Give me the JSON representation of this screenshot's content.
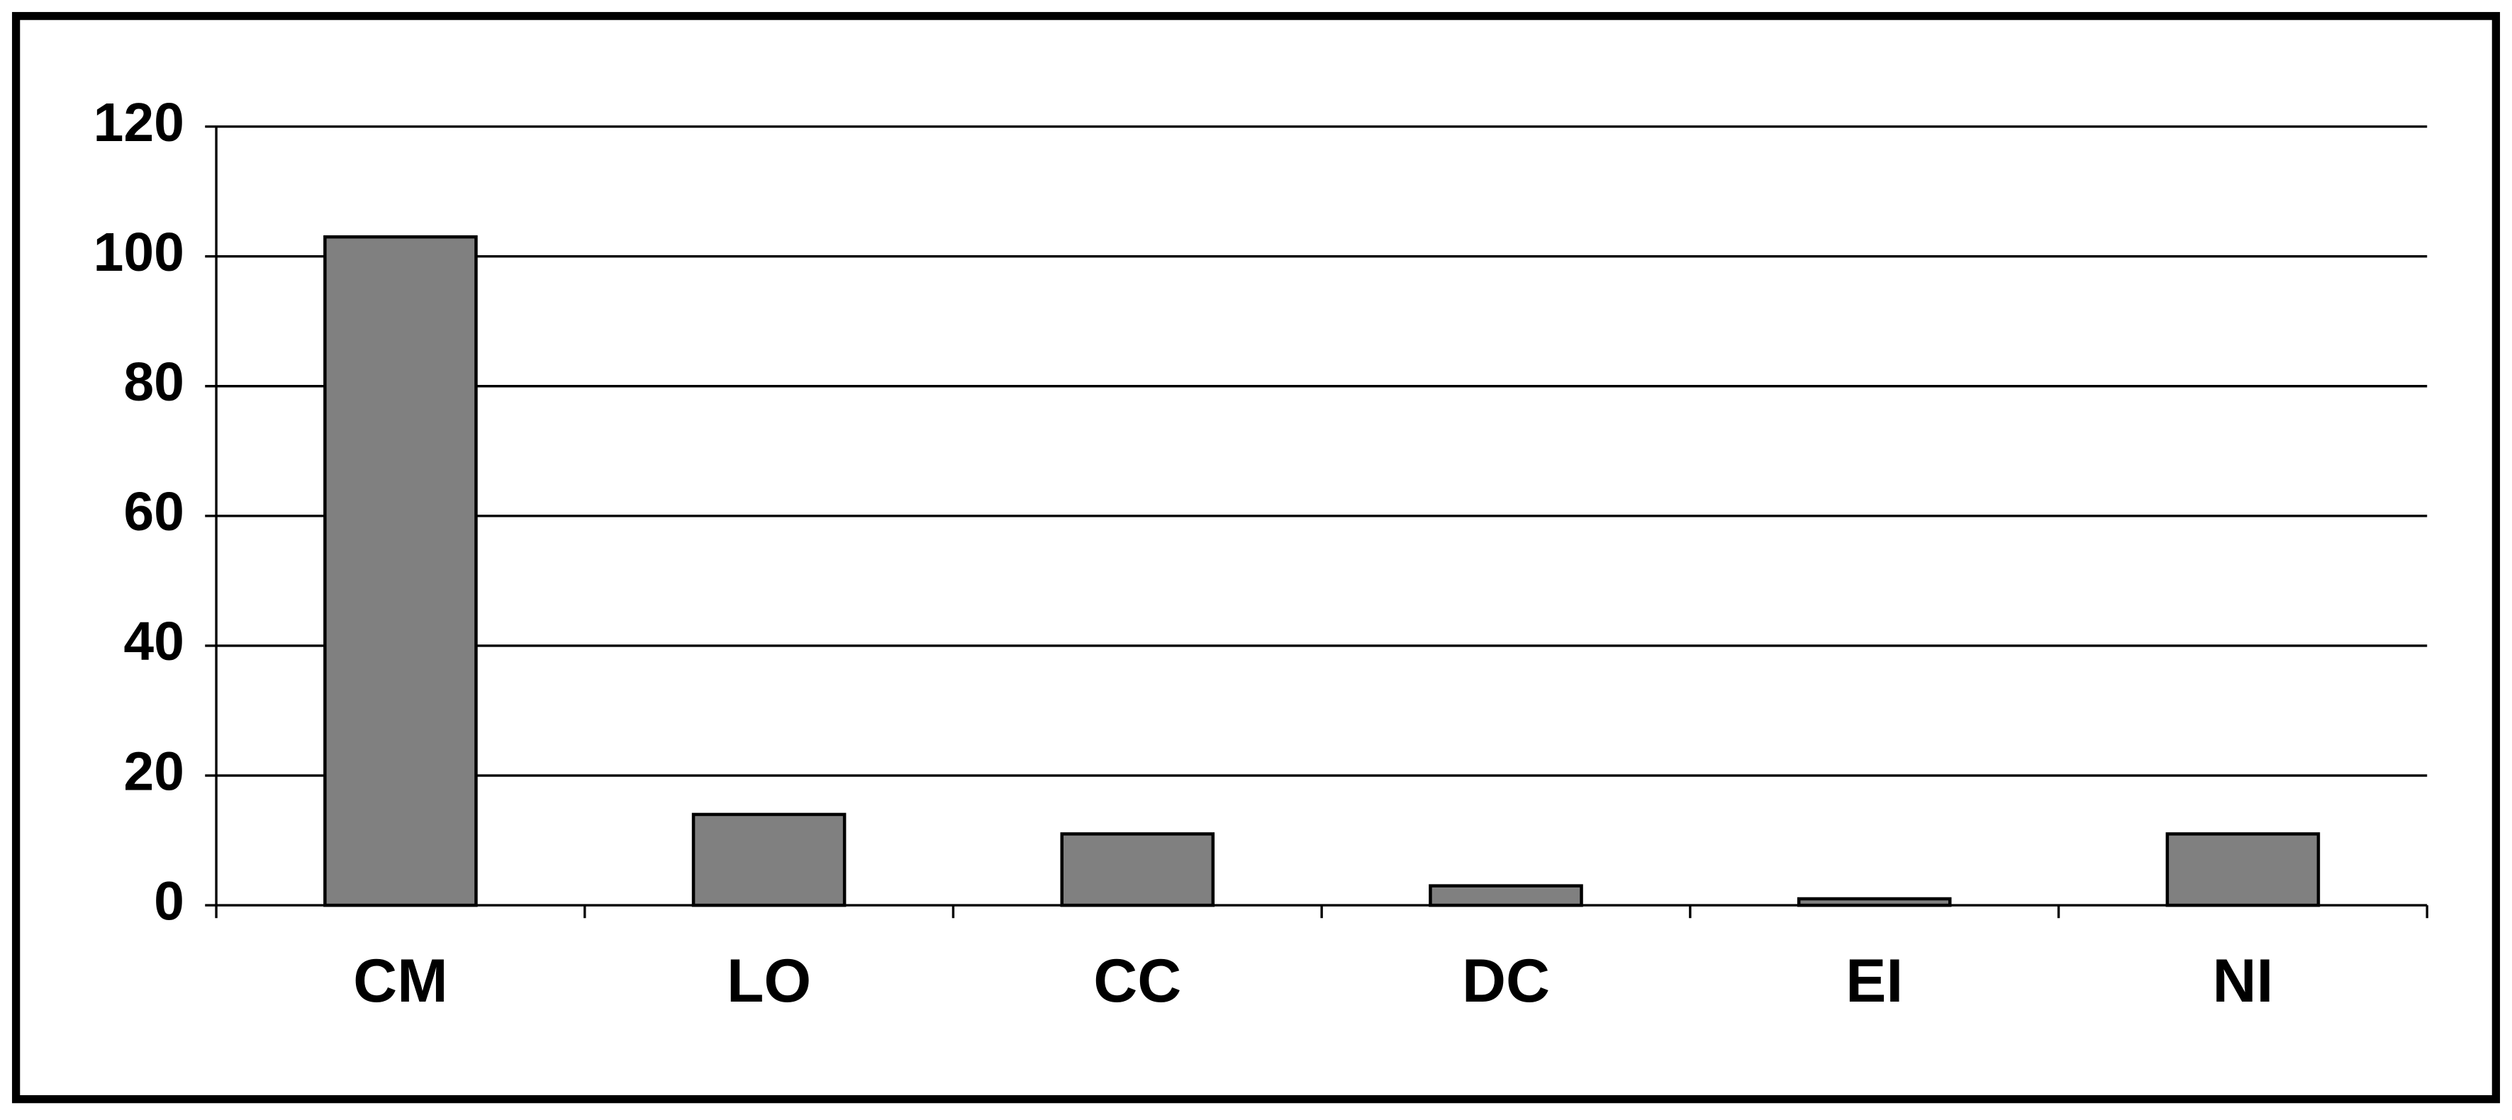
{
  "chart_data": {
    "type": "bar",
    "categories": [
      "CM",
      "LO",
      "CC",
      "DC",
      "EI",
      "NI"
    ],
    "values": [
      103,
      14,
      11,
      3,
      1,
      11
    ],
    "color": "#808080",
    "ylim": [
      0,
      120
    ],
    "yticks": [
      0,
      20,
      40,
      60,
      80,
      100,
      120
    ],
    "grid": true
  }
}
